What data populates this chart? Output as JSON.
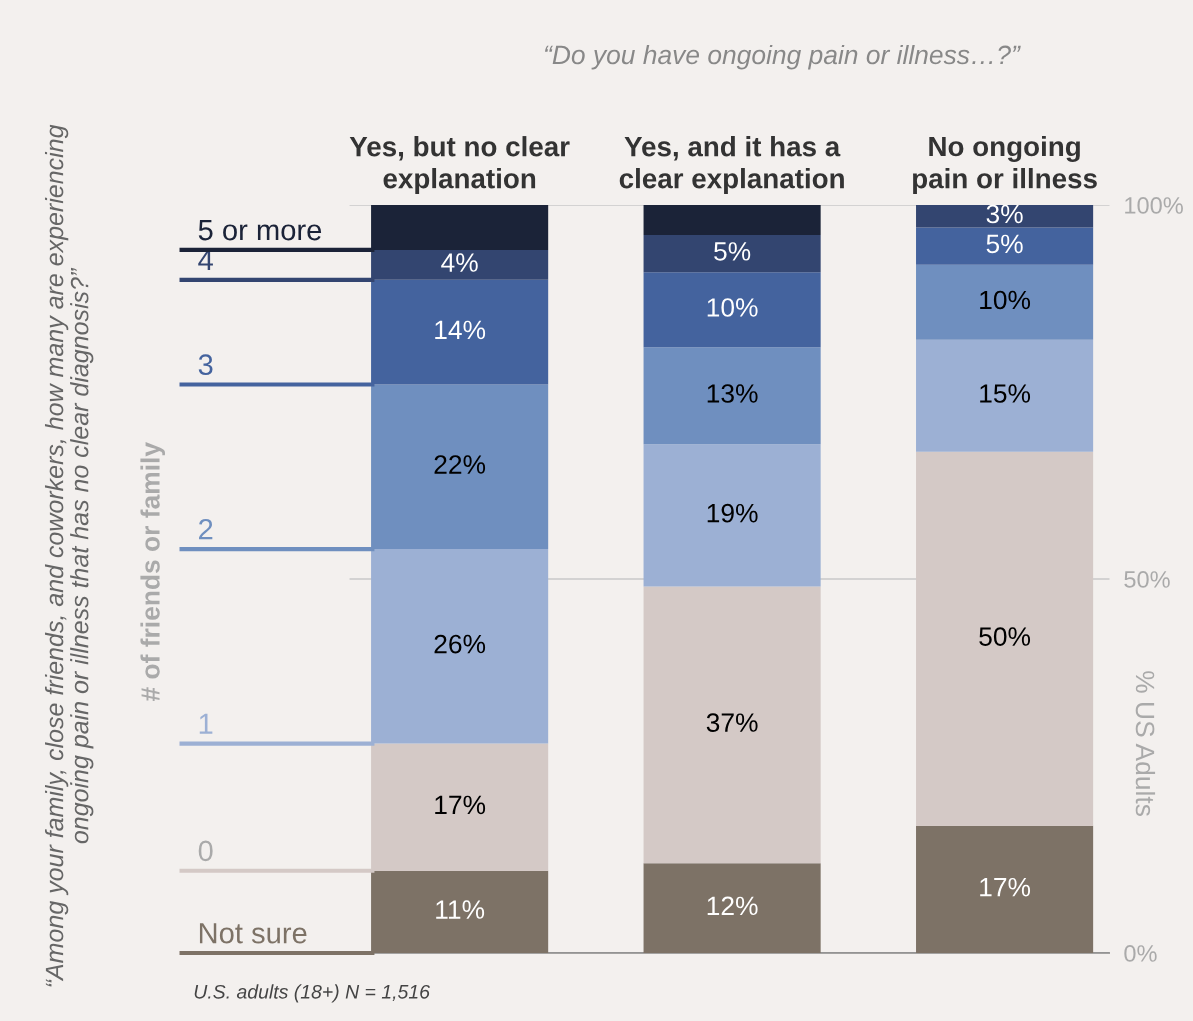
{
  "chart_data": {
    "type": "bar",
    "stacked": true,
    "title": "“Do you have ongoing pain or illness…?”",
    "categories": [
      "Yes, but no clear\nexplanation",
      "Yes, and it has a\nclear explanation",
      "No ongoing\npain or illness"
    ],
    "ylabel": "% US Adults",
    "legend_title": "# of friends or family",
    "legend": "left",
    "ylim": [
      0,
      100
    ],
    "yticks": [
      {
        "value": 0,
        "label": "0%"
      },
      {
        "value": 50,
        "label": "50%"
      },
      {
        "value": 100,
        "label": "100%"
      }
    ],
    "grid": "y",
    "series": [
      {
        "name": "Not sure",
        "color": "#7d7266",
        "values": [
          11,
          12,
          17
        ],
        "value_labels": [
          "11%",
          "12%",
          "17%"
        ]
      },
      {
        "name": "0",
        "color": "#d4c9c6",
        "values": [
          17,
          37,
          50
        ],
        "value_labels": [
          "17%",
          "37%",
          "50%"
        ]
      },
      {
        "name": "1",
        "color": "#9cb0d4",
        "values": [
          26,
          19,
          15
        ],
        "value_labels": [
          "26%",
          "19%",
          "15%"
        ]
      },
      {
        "name": "2",
        "color": "#6f8fbf",
        "values": [
          22,
          13,
          10
        ],
        "value_labels": [
          "22%",
          "13%",
          "10%"
        ]
      },
      {
        "name": "3",
        "color": "#44639e",
        "values": [
          14,
          10,
          5
        ],
        "value_labels": [
          "14%",
          "10%",
          "5%"
        ]
      },
      {
        "name": "4",
        "color": "#334570",
        "values": [
          4,
          5,
          3
        ],
        "value_labels": [
          "4%",
          "5%",
          "3%"
        ]
      },
      {
        "name": "5 or more",
        "color": "#1b2338",
        "values": [
          6,
          4,
          null
        ],
        "value_labels": [
          null,
          null,
          null
        ]
      }
    ],
    "annotations": [
      "“Among your family, close friends, and coworkers, how many are experiencing ongoing pain or illness that has no clear diagnosis?”",
      "U.S. adults (18+) N = 1,516"
    ]
  }
}
